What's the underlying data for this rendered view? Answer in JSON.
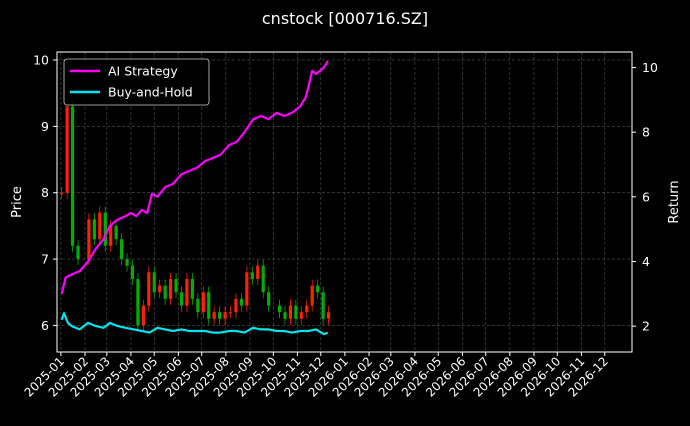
{
  "chart_data": {
    "type": "line",
    "title": "cnstock [000716.SZ]",
    "xlabel": "",
    "ylabel_left": "Price",
    "ylabel_right": "Return",
    "ylim_left": [
      5.6,
      10.12
    ],
    "ylim_right": [
      1.2,
      10.48
    ],
    "xlim": [
      "2024-12-27",
      "2027-01-05"
    ],
    "y_ticks_left": [
      6,
      7,
      8,
      9,
      10
    ],
    "y_ticks_right": [
      2,
      4,
      6,
      8,
      10
    ],
    "x_ticks": [
      "2025-01",
      "2025-02",
      "2025-03",
      "2025-04",
      "2025-05",
      "2025-06",
      "2025-07",
      "2025-08",
      "2025-09",
      "2025-10",
      "2025-11",
      "2025-12",
      "2026-01",
      "2026-02",
      "2026-03",
      "2026-04",
      "2026-05",
      "2026-06",
      "2026-07",
      "2026-08",
      "2026-09",
      "2026-10",
      "2026-11",
      "2026-12"
    ],
    "grid": true,
    "legend_position": "top-left",
    "colors": {
      "background": "#000000",
      "text": "#ffffff",
      "grid": "#555555",
      "candle_up": "#ff2200",
      "candle_down": "#00b000",
      "ai_strategy": "#ff00ff",
      "buy_and_hold": "#00e5ee"
    },
    "price_series": {
      "name": "",
      "axis": "left",
      "dates": [
        "2025-01-02",
        "2025-01-09",
        "2025-01-16",
        "2025-01-23",
        "2025-02-06",
        "2025-02-13",
        "2025-02-20",
        "2025-02-27",
        "2025-03-06",
        "2025-03-13",
        "2025-03-20",
        "2025-03-27",
        "2025-04-03",
        "2025-04-10",
        "2025-04-17",
        "2025-04-24",
        "2025-05-01",
        "2025-05-08",
        "2025-05-15",
        "2025-05-22",
        "2025-05-29",
        "2025-06-05",
        "2025-06-12",
        "2025-06-19",
        "2025-06-26",
        "2025-07-03",
        "2025-07-10",
        "2025-07-17",
        "2025-07-24",
        "2025-07-31",
        "2025-08-07",
        "2025-08-14",
        "2025-08-21",
        "2025-08-28",
        "2025-09-04",
        "2025-09-11",
        "2025-09-18",
        "2025-09-25",
        "2025-10-09",
        "2025-10-16",
        "2025-10-23",
        "2025-10-30",
        "2025-11-06",
        "2025-11-13",
        "2025-11-20",
        "2025-11-27",
        "2025-12-04",
        "2025-12-11"
      ],
      "close": [
        8.0,
        9.3,
        7.2,
        7.0,
        7.6,
        7.3,
        7.7,
        7.2,
        7.5,
        7.3,
        7.0,
        6.9,
        6.7,
        6.0,
        6.3,
        6.8,
        6.5,
        6.6,
        6.4,
        6.7,
        6.5,
        6.3,
        6.7,
        6.4,
        6.2,
        6.5,
        6.1,
        6.2,
        6.1,
        6.2,
        6.2,
        6.4,
        6.3,
        6.8,
        6.7,
        6.9,
        6.5,
        6.3,
        6.2,
        6.1,
        6.3,
        6.1,
        6.2,
        6.3,
        6.6,
        6.5,
        6.1,
        6.2
      ]
    },
    "series": [
      {
        "name": "AI Strategy",
        "axis": "right",
        "dates": [
          "2025-01-02",
          "2025-01-07",
          "2025-01-15",
          "2025-01-25",
          "2025-02-05",
          "2025-02-15",
          "2025-02-25",
          "2025-03-05",
          "2025-03-15",
          "2025-03-25",
          "2025-04-01",
          "2025-04-08",
          "2025-04-15",
          "2025-04-22",
          "2025-04-28",
          "2025-05-05",
          "2025-05-15",
          "2025-05-25",
          "2025-06-05",
          "2025-06-15",
          "2025-06-25",
          "2025-07-05",
          "2025-07-15",
          "2025-07-25",
          "2025-08-05",
          "2025-08-15",
          "2025-08-25",
          "2025-09-05",
          "2025-09-15",
          "2025-09-25",
          "2025-10-05",
          "2025-10-15",
          "2025-10-25",
          "2025-11-05",
          "2025-11-12",
          "2025-11-20",
          "2025-11-25",
          "2025-12-05",
          "2025-12-10"
        ],
        "values": [
          3.0,
          3.5,
          3.6,
          3.7,
          4.0,
          4.4,
          4.7,
          5.1,
          5.3,
          5.4,
          5.5,
          5.4,
          5.6,
          5.5,
          6.1,
          6.0,
          6.3,
          6.4,
          6.7,
          6.8,
          6.9,
          7.1,
          7.2,
          7.3,
          7.6,
          7.7,
          8.0,
          8.4,
          8.5,
          8.4,
          8.6,
          8.5,
          8.6,
          8.8,
          9.1,
          9.9,
          9.8,
          10.0,
          10.2
        ]
      },
      {
        "name": "Buy-and-Hold",
        "axis": "right",
        "dates": [
          "2025-01-02",
          "2025-01-05",
          "2025-01-10",
          "2025-01-15",
          "2025-01-25",
          "2025-02-05",
          "2025-02-15",
          "2025-02-25",
          "2025-03-05",
          "2025-03-15",
          "2025-03-25",
          "2025-04-05",
          "2025-04-15",
          "2025-04-25",
          "2025-05-05",
          "2025-05-15",
          "2025-05-25",
          "2025-06-05",
          "2025-06-15",
          "2025-06-25",
          "2025-07-05",
          "2025-07-15",
          "2025-07-25",
          "2025-08-05",
          "2025-08-15",
          "2025-08-25",
          "2025-09-05",
          "2025-09-15",
          "2025-09-25",
          "2025-10-05",
          "2025-10-15",
          "2025-10-25",
          "2025-11-05",
          "2025-11-15",
          "2025-11-25",
          "2025-12-05",
          "2025-12-10"
        ],
        "values": [
          2.2,
          2.4,
          2.1,
          2.0,
          1.9,
          2.1,
          2.0,
          1.95,
          2.1,
          2.0,
          1.95,
          1.9,
          1.85,
          1.8,
          1.95,
          1.9,
          1.85,
          1.9,
          1.85,
          1.85,
          1.85,
          1.8,
          1.8,
          1.85,
          1.85,
          1.8,
          1.95,
          1.9,
          1.9,
          1.85,
          1.85,
          1.8,
          1.85,
          1.85,
          1.9,
          1.75,
          1.8
        ]
      }
    ]
  }
}
